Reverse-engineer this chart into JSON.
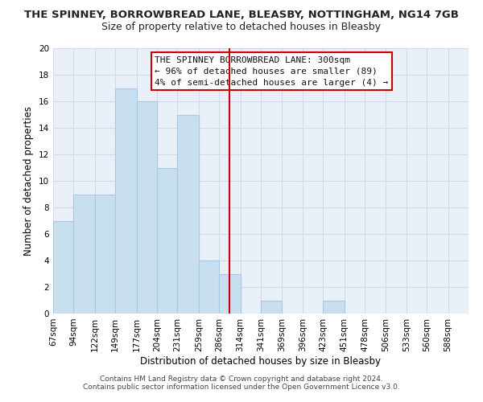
{
  "title": "THE SPINNEY, BORROWBREAD LANE, BLEASBY, NOTTINGHAM, NG14 7GB",
  "subtitle": "Size of property relative to detached houses in Bleasby",
  "xlabel": "Distribution of detached houses by size in Bleasby",
  "ylabel": "Number of detached properties",
  "bar_color": "#c8dff0",
  "bar_edge_color": "#a8c8e8",
  "grid_color": "#d0daea",
  "background_color": "#eaf0f8",
  "bins": [
    67,
    94,
    122,
    149,
    177,
    204,
    231,
    259,
    286,
    314,
    341,
    369,
    396,
    423,
    451,
    478,
    506,
    533,
    560,
    588,
    615
  ],
  "heights": [
    7,
    9,
    9,
    17,
    16,
    11,
    15,
    4,
    3,
    0,
    1,
    0,
    0,
    1,
    0,
    0,
    0,
    0,
    0,
    0
  ],
  "property_value": 300,
  "vline_color": "#cc0000",
  "ylim": [
    0,
    20
  ],
  "yticks": [
    0,
    2,
    4,
    6,
    8,
    10,
    12,
    14,
    16,
    18,
    20
  ],
  "annotation_box_text_line1": "THE SPINNEY BORROWBREAD LANE: 300sqm",
  "annotation_box_text_line2": "← 96% of detached houses are smaller (89)",
  "annotation_box_text_line3": "4% of semi-detached houses are larger (4) →",
  "footer_line1": "Contains HM Land Registry data © Crown copyright and database right 2024.",
  "footer_line2": "Contains public sector information licensed under the Open Government Licence v3.0.",
  "title_fontsize": 9.5,
  "subtitle_fontsize": 9,
  "tick_label_fontsize": 7.5,
  "axis_label_fontsize": 8.5,
  "annotation_fontsize": 8
}
